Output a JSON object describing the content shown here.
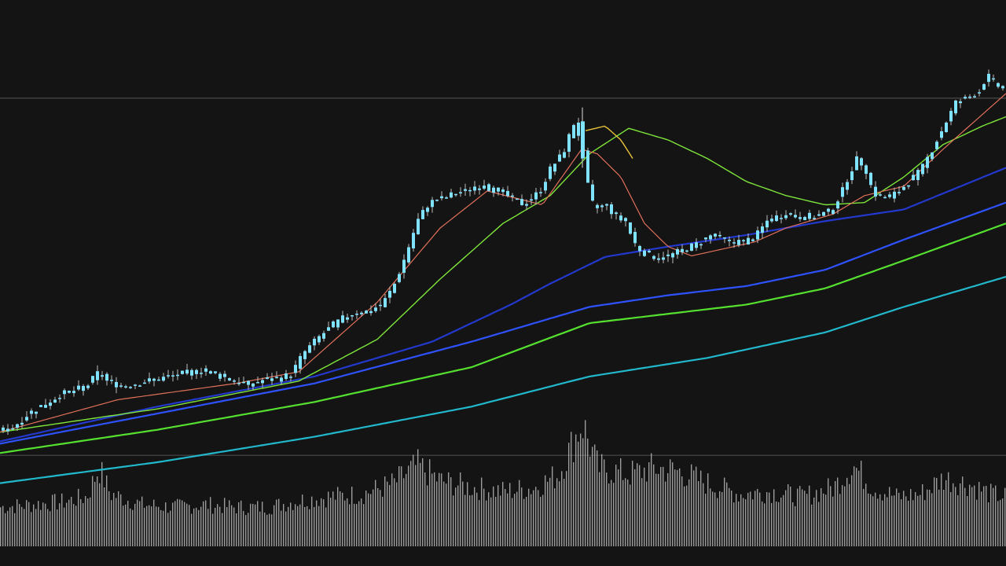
{
  "chart_data": {
    "type": "candlestick",
    "symbol": "",
    "interval": "",
    "grid": false,
    "legend": "none",
    "ylim": [
      0,
      100
    ],
    "volume_ylim": [
      0,
      100
    ],
    "horizontal_levels": [
      89,
      12
    ],
    "colors": {
      "background": "#141414",
      "candle": "#7fe3ff",
      "wick": "#bdbdbd",
      "volume": "#b4b4b4",
      "level_line": "#4a4a4a",
      "ma_fast": "#e0705a",
      "ma_mid": "#7ee63a",
      "ma_yellow": "#e8c23a",
      "ma_blue_1": "#2338cc",
      "ma_blue_2": "#2e52ff",
      "ma_green_2": "#55e030",
      "ma_slow": "#22b8cc"
    },
    "price_anchors": [
      [
        0,
        17
      ],
      [
        20,
        18
      ],
      [
        40,
        21
      ],
      [
        60,
        23
      ],
      [
        80,
        25
      ],
      [
        100,
        26
      ],
      [
        115,
        27
      ],
      [
        130,
        30
      ],
      [
        140,
        28
      ],
      [
        160,
        27
      ],
      [
        180,
        27.5
      ],
      [
        200,
        28.3
      ],
      [
        220,
        29
      ],
      [
        240,
        29.6
      ],
      [
        260,
        30.4
      ],
      [
        275,
        29.6
      ],
      [
        290,
        28.8
      ],
      [
        305,
        28
      ],
      [
        320,
        27.3
      ],
      [
        340,
        28.3
      ],
      [
        360,
        28.5
      ],
      [
        375,
        29.6
      ],
      [
        390,
        34
      ],
      [
        410,
        37.5
      ],
      [
        430,
        40.4
      ],
      [
        450,
        42.5
      ],
      [
        470,
        43
      ],
      [
        490,
        44.5
      ],
      [
        505,
        48.5
      ],
      [
        520,
        55
      ],
      [
        535,
        62.5
      ],
      [
        550,
        66.5
      ],
      [
        565,
        67.2
      ],
      [
        580,
        68.2
      ],
      [
        595,
        68.7
      ],
      [
        605,
        70
      ],
      [
        620,
        70
      ],
      [
        640,
        69
      ],
      [
        655,
        67.3
      ],
      [
        670,
        66.2
      ],
      [
        690,
        68.7
      ],
      [
        705,
        74
      ],
      [
        720,
        77
      ],
      [
        735,
        84
      ],
      [
        745,
        78.5
      ],
      [
        752,
        70
      ],
      [
        760,
        65
      ],
      [
        775,
        66
      ],
      [
        790,
        63
      ],
      [
        800,
        62.5
      ],
      [
        810,
        58
      ],
      [
        820,
        56
      ],
      [
        835,
        55
      ],
      [
        845,
        54.5
      ],
      [
        855,
        55
      ],
      [
        870,
        56
      ],
      [
        890,
        57.5
      ],
      [
        910,
        59.5
      ],
      [
        930,
        58
      ],
      [
        950,
        58
      ],
      [
        965,
        59
      ],
      [
        980,
        62.5
      ],
      [
        1000,
        64
      ],
      [
        1020,
        63.5
      ],
      [
        1040,
        63.5
      ],
      [
        1060,
        64.5
      ],
      [
        1075,
        68.6
      ],
      [
        1085,
        73
      ],
      [
        1095,
        76
      ],
      [
        1105,
        74
      ],
      [
        1115,
        68.5
      ],
      [
        1130,
        67.5
      ],
      [
        1145,
        68.5
      ],
      [
        1160,
        71
      ],
      [
        1175,
        73.2
      ],
      [
        1190,
        78
      ],
      [
        1205,
        83
      ],
      [
        1220,
        88
      ],
      [
        1235,
        89
      ],
      [
        1250,
        90.5
      ],
      [
        1260,
        94
      ],
      [
        1270,
        92
      ],
      [
        1280,
        91
      ]
    ],
    "volume_anchors": [
      [
        0,
        30
      ],
      [
        40,
        32
      ],
      [
        80,
        34
      ],
      [
        110,
        38
      ],
      [
        125,
        60
      ],
      [
        140,
        40
      ],
      [
        180,
        32
      ],
      [
        220,
        30
      ],
      [
        260,
        32
      ],
      [
        300,
        30
      ],
      [
        340,
        30
      ],
      [
        380,
        35
      ],
      [
        420,
        38
      ],
      [
        460,
        40
      ],
      [
        500,
        48
      ],
      [
        530,
        62
      ],
      [
        560,
        50
      ],
      [
        600,
        45
      ],
      [
        640,
        42
      ],
      [
        680,
        45
      ],
      [
        710,
        55
      ],
      [
        740,
        95
      ],
      [
        760,
        60
      ],
      [
        800,
        55
      ],
      [
        830,
        60
      ],
      [
        860,
        58
      ],
      [
        900,
        48
      ],
      [
        940,
        40
      ],
      [
        980,
        42
      ],
      [
        1020,
        38
      ],
      [
        1060,
        45
      ],
      [
        1085,
        62
      ],
      [
        1110,
        45
      ],
      [
        1140,
        38
      ],
      [
        1170,
        40
      ],
      [
        1200,
        52
      ],
      [
        1230,
        48
      ],
      [
        1260,
        40
      ],
      [
        1280,
        38
      ]
    ],
    "moving_averages": [
      {
        "key": "ma_slow",
        "width": 2.2,
        "values": [
          [
            0,
            6
          ],
          [
            200,
            10.5
          ],
          [
            400,
            16
          ],
          [
            600,
            22.5
          ],
          [
            750,
            29
          ],
          [
            900,
            33
          ],
          [
            1050,
            38.5
          ],
          [
            1150,
            44
          ],
          [
            1280,
            50.5
          ]
        ]
      },
      {
        "key": "ma_green_2",
        "width": 2.2,
        "values": [
          [
            0,
            12.5
          ],
          [
            200,
            17.5
          ],
          [
            400,
            23.5
          ],
          [
            600,
            31
          ],
          [
            750,
            40.5
          ],
          [
            850,
            42.5
          ],
          [
            950,
            44.5
          ],
          [
            1050,
            48
          ],
          [
            1150,
            54
          ],
          [
            1280,
            62
          ]
        ]
      },
      {
        "key": "ma_blue_2",
        "width": 2.2,
        "values": [
          [
            0,
            14.5
          ],
          [
            200,
            21
          ],
          [
            400,
            27.5
          ],
          [
            600,
            36.5
          ],
          [
            750,
            44
          ],
          [
            850,
            46.5
          ],
          [
            950,
            48.5
          ],
          [
            1050,
            52
          ],
          [
            1150,
            58.5
          ],
          [
            1280,
            66.5
          ]
        ]
      },
      {
        "key": "ma_blue_1",
        "width": 2.2,
        "values": [
          [
            0,
            15
          ],
          [
            200,
            22.5
          ],
          [
            400,
            29
          ],
          [
            550,
            36.5
          ],
          [
            650,
            44.5
          ],
          [
            700,
            49
          ],
          [
            770,
            54.8
          ],
          [
            850,
            57
          ],
          [
            950,
            59.5
          ],
          [
            1050,
            62.5
          ],
          [
            1150,
            65
          ],
          [
            1280,
            74
          ]
        ]
      },
      {
        "key": "ma_mid",
        "width": 1.4,
        "values": [
          [
            0,
            17
          ],
          [
            200,
            22
          ],
          [
            380,
            28
          ],
          [
            480,
            37
          ],
          [
            560,
            50
          ],
          [
            640,
            62
          ],
          [
            700,
            68
          ],
          [
            750,
            77
          ],
          [
            800,
            82.5
          ],
          [
            850,
            80
          ],
          [
            900,
            76
          ],
          [
            950,
            71
          ],
          [
            1000,
            68
          ],
          [
            1050,
            66
          ],
          [
            1100,
            66.5
          ],
          [
            1150,
            72
          ],
          [
            1200,
            79
          ],
          [
            1250,
            83
          ],
          [
            1280,
            85
          ]
        ]
      },
      {
        "key": "ma_yellow",
        "width": 1.4,
        "values": [
          [
            745,
            82
          ],
          [
            770,
            83
          ],
          [
            790,
            80
          ],
          [
            805,
            76
          ]
        ]
      },
      {
        "key": "ma_fast",
        "width": 1.2,
        "values": [
          [
            0,
            17
          ],
          [
            150,
            24
          ],
          [
            300,
            27.5
          ],
          [
            380,
            30
          ],
          [
            480,
            45
          ],
          [
            560,
            61
          ],
          [
            620,
            69
          ],
          [
            690,
            66
          ],
          [
            740,
            78
          ],
          [
            760,
            77
          ],
          [
            790,
            72
          ],
          [
            820,
            62
          ],
          [
            850,
            57
          ],
          [
            880,
            55
          ],
          [
            920,
            56.5
          ],
          [
            960,
            58
          ],
          [
            1000,
            61
          ],
          [
            1060,
            64
          ],
          [
            1100,
            68
          ],
          [
            1150,
            70
          ],
          [
            1200,
            78
          ],
          [
            1240,
            84
          ],
          [
            1280,
            90
          ]
        ]
      }
    ],
    "xlabels": [
      "",
      "",
      "",
      "",
      "",
      "",
      "",
      "",
      "",
      "",
      "",
      "",
      "",
      "",
      "",
      "",
      "",
      "",
      "",
      ""
    ]
  }
}
